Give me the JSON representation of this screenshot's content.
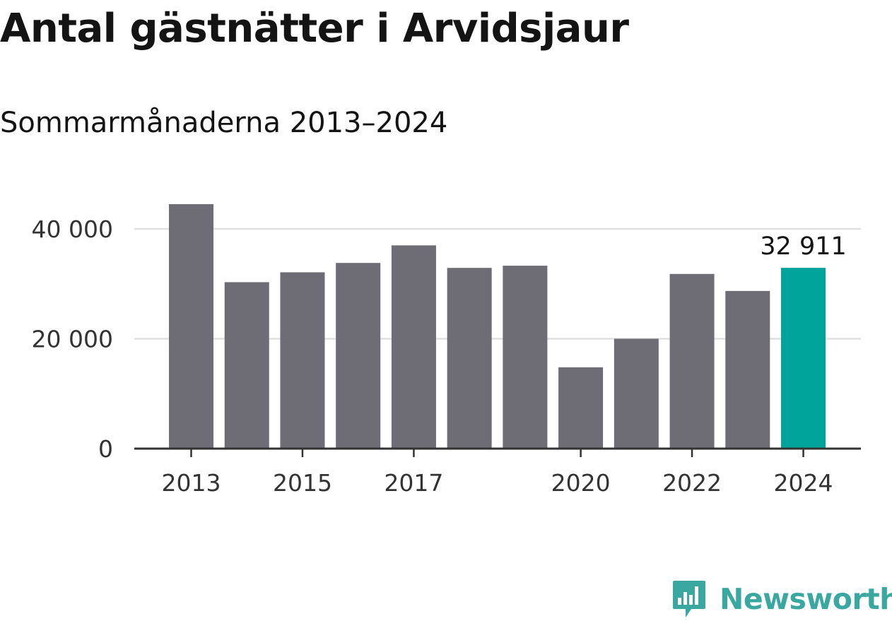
{
  "header": {
    "title": "Antal gästnätter i Arvidsjaur",
    "subtitle": "Sommarmånaderna 2013–2024"
  },
  "brand": {
    "name": "Newsworthy",
    "color": "#3aa7a0"
  },
  "colors": {
    "bar": "#6e6d75",
    "highlight": "#00a49a",
    "grid": "#e0e0e0",
    "axis": "#333333",
    "tick_label": "#333333"
  },
  "chart_data": {
    "type": "bar",
    "title": "Antal gästnätter i Arvidsjaur",
    "subtitle": "Sommarmånaderna 2013–2024",
    "xlabel": "",
    "ylabel": "",
    "categories": [
      "2013",
      "2014",
      "2015",
      "2016",
      "2017",
      "2018",
      "2019",
      "2020",
      "2021",
      "2022",
      "2023",
      "2024"
    ],
    "values": [
      44500,
      30300,
      32100,
      33800,
      37000,
      32900,
      33300,
      14800,
      20000,
      31800,
      28700,
      32911
    ],
    "x_tick_labels": [
      "2013",
      "2015",
      "2017",
      "2020",
      "2022",
      "2024"
    ],
    "y_ticks": [
      0,
      20000,
      40000
    ],
    "y_tick_labels": [
      "0",
      "20 000",
      "40 000"
    ],
    "ylim": [
      0,
      44500
    ],
    "grid": true,
    "highlight_category": "2024",
    "annotation": {
      "category": "2024",
      "text": "32 911"
    },
    "legend": "none"
  }
}
